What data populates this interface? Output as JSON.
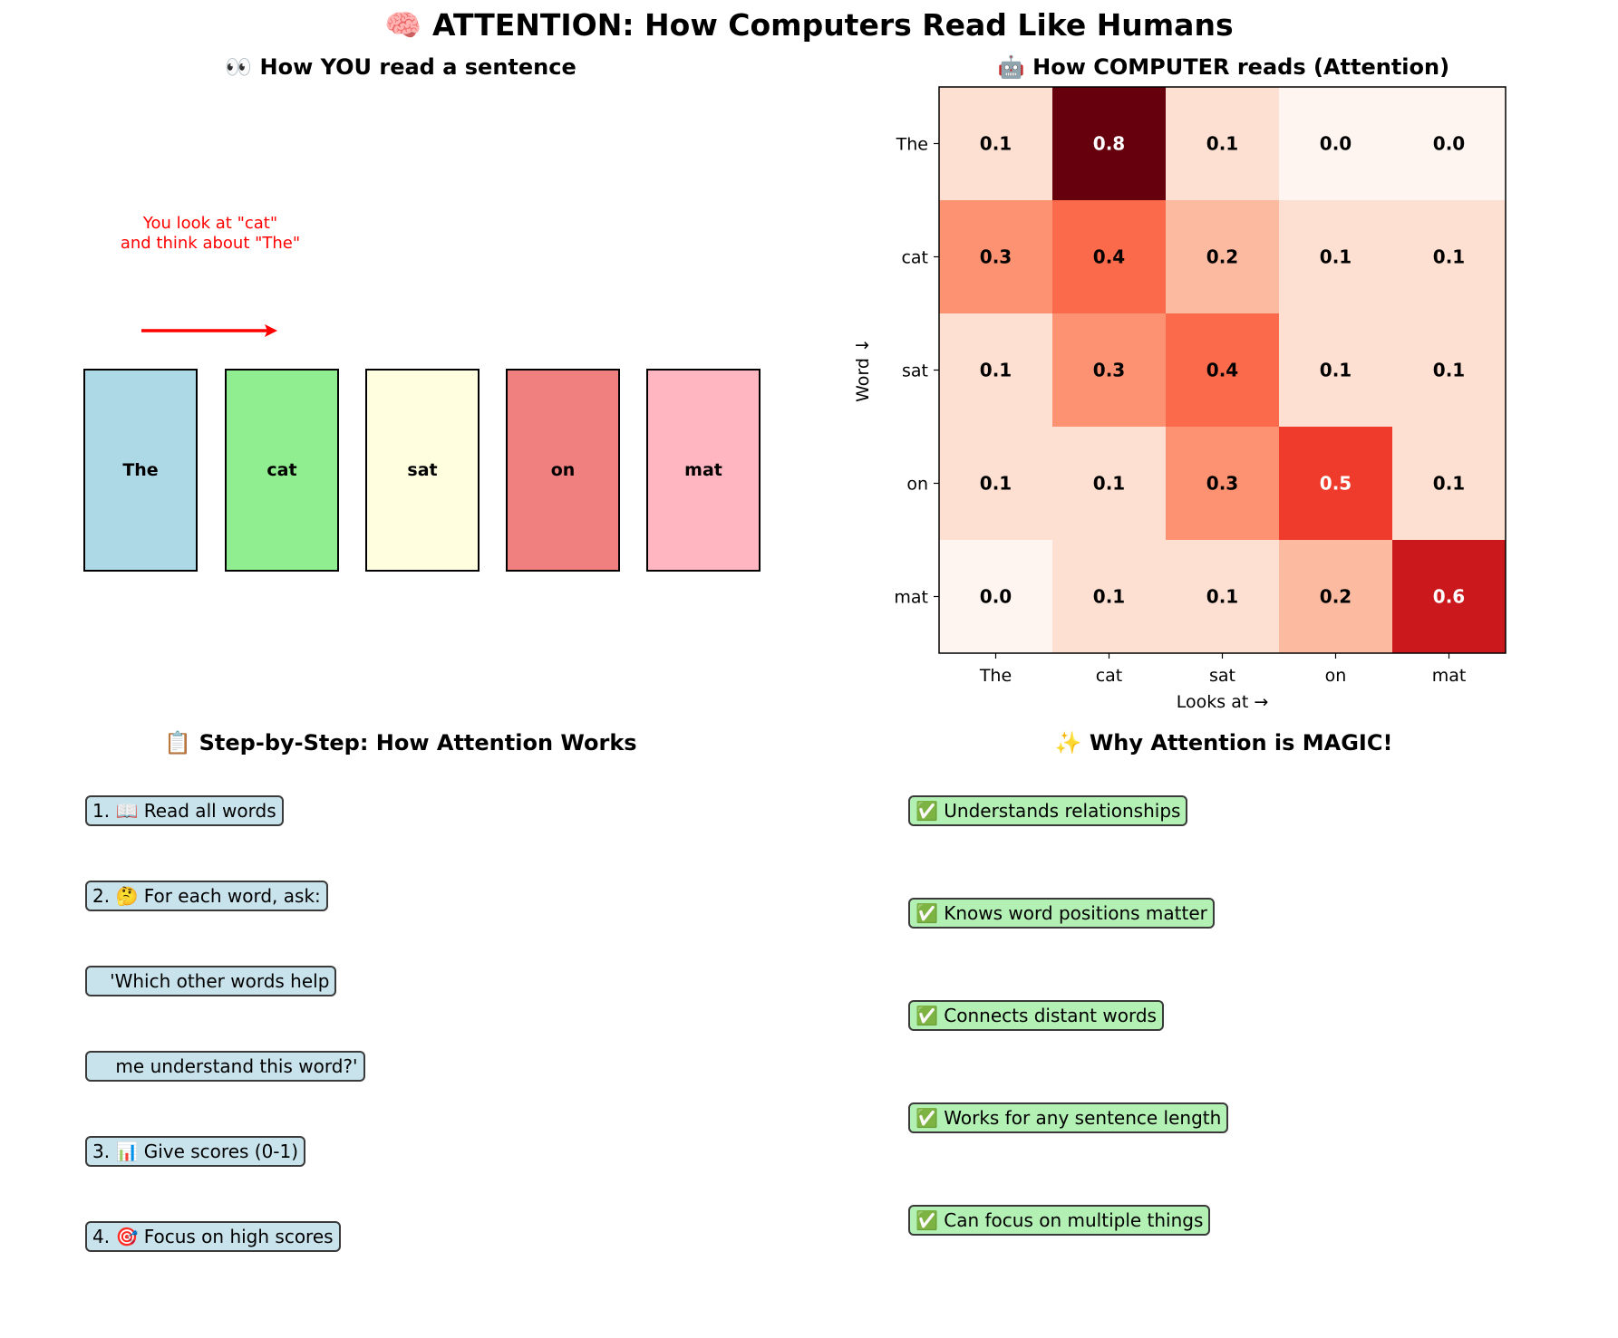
{
  "main_title": "🧠 ATTENTION: How Computers Read Like Humans",
  "left_panel": {
    "title": "👀 How YOU read a sentence",
    "words": [
      {
        "label": "The",
        "color": "#add8e6"
      },
      {
        "label": "cat",
        "color": "#90ee90"
      },
      {
        "label": "sat",
        "color": "#ffffe0"
      },
      {
        "label": "on",
        "color": "#f08080"
      },
      {
        "label": "mat",
        "color": "#ffb6c1"
      }
    ],
    "annotation_line1": "You look at \"cat\"",
    "annotation_line2": "and think about \"The\""
  },
  "chart_data": {
    "type": "heatmap",
    "title": "🤖 How COMPUTER reads (Attention)",
    "xlabel": "Looks at →",
    "ylabel": "Word ↓",
    "x_labels": [
      "The",
      "cat",
      "sat",
      "on",
      "mat"
    ],
    "y_labels": [
      "The",
      "cat",
      "sat",
      "on",
      "mat"
    ],
    "values": [
      [
        0.1,
        0.8,
        0.1,
        0.0,
        0.0
      ],
      [
        0.3,
        0.4,
        0.2,
        0.1,
        0.1
      ],
      [
        0.1,
        0.3,
        0.4,
        0.1,
        0.1
      ],
      [
        0.1,
        0.1,
        0.3,
        0.5,
        0.1
      ],
      [
        0.0,
        0.1,
        0.1,
        0.2,
        0.6
      ]
    ],
    "colormap": "Reds"
  },
  "steps_panel": {
    "title": "📋 Step-by-Step: How Attention Works",
    "items": [
      "1. 📖 Read all words",
      "2. 🤔 For each word, ask:",
      "   'Which other words help",
      "    me understand this word?'",
      "3. 📊 Give scores (0-1)",
      "4. 🎯 Focus on high scores"
    ]
  },
  "magic_panel": {
    "title": "✨ Why Attention is MAGIC!",
    "items": [
      "✅ Understands relationships",
      "✅ Knows word positions matter",
      "✅ Connects distant words",
      "✅ Works for any sentence length",
      "✅ Can focus on multiple things"
    ]
  }
}
